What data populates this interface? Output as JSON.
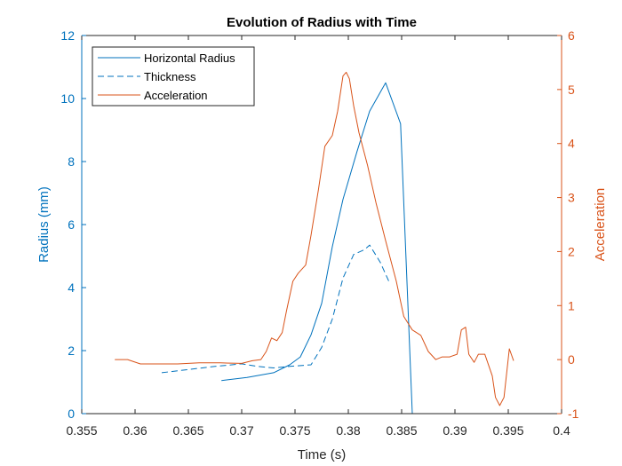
{
  "chart_data": {
    "type": "line",
    "title": "Evolution of Radius with Time",
    "xlabel": "Time (s)",
    "ylabel_left": "Radius (mm)",
    "ylabel_right": "Acceleration",
    "xlim": [
      0.355,
      0.4
    ],
    "ylim_left": [
      0,
      12
    ],
    "ylim_right": [
      -1,
      6
    ],
    "xticks": [
      0.355,
      0.36,
      0.365,
      0.37,
      0.375,
      0.38,
      0.385,
      0.39,
      0.395,
      0.4
    ],
    "xtick_labels": [
      "0.355",
      "0.36",
      "0.365",
      "0.37",
      "0.375",
      "0.38",
      "0.385",
      "0.39",
      "0.395",
      "0.4"
    ],
    "yticks_left": [
      0,
      2,
      4,
      6,
      8,
      10,
      12
    ],
    "ytick_labels_left": [
      "0",
      "2",
      "4",
      "6",
      "8",
      "10",
      "12"
    ],
    "yticks_right": [
      -1,
      0,
      1,
      2,
      3,
      4,
      5,
      6
    ],
    "ytick_labels_right": [
      "-1",
      "0",
      "1",
      "2",
      "3",
      "4",
      "5",
      "6"
    ],
    "grid": false,
    "legend_position": "top-left",
    "colors": {
      "left_axis": "#0072BD",
      "right_axis": "#D95319",
      "frame": "#262626"
    },
    "series": [
      {
        "name": "Horizontal Radius",
        "axis": "left",
        "style": "solid",
        "color": "#0072BD",
        "x": [
          0.3681,
          0.3705,
          0.373,
          0.3745,
          0.3755,
          0.3765,
          0.3775,
          0.3785,
          0.3795,
          0.3808,
          0.382,
          0.383,
          0.3835,
          0.3849,
          0.386
        ],
        "y": [
          1.05,
          1.15,
          1.3,
          1.55,
          1.8,
          2.5,
          3.5,
          5.3,
          6.8,
          8.3,
          9.6,
          10.2,
          10.5,
          9.2,
          0
        ]
      },
      {
        "name": "Thickness",
        "axis": "left",
        "style": "dashed",
        "color": "#0072BD",
        "x": [
          0.3625,
          0.365,
          0.3675,
          0.37,
          0.3715,
          0.373,
          0.3745,
          0.3765,
          0.3775,
          0.3785,
          0.3795,
          0.3805,
          0.3815,
          0.382,
          0.383,
          0.3838
        ],
        "y": [
          1.3,
          1.4,
          1.5,
          1.58,
          1.5,
          1.45,
          1.5,
          1.55,
          2.1,
          3.0,
          4.3,
          5.05,
          5.2,
          5.35,
          4.8,
          4.2
        ]
      },
      {
        "name": "Acceleration",
        "axis": "right",
        "style": "solid",
        "color": "#D95319",
        "x": [
          0.3581,
          0.3593,
          0.3605,
          0.362,
          0.364,
          0.366,
          0.368,
          0.37,
          0.371,
          0.3718,
          0.3723,
          0.3728,
          0.3733,
          0.3738,
          0.3742,
          0.3748,
          0.3753,
          0.376,
          0.3765,
          0.3772,
          0.3778,
          0.3785,
          0.379,
          0.3795,
          0.3798,
          0.3801,
          0.3805,
          0.381,
          0.3818,
          0.3826,
          0.3835,
          0.3845,
          0.3852,
          0.386,
          0.3868,
          0.3875,
          0.3882,
          0.3888,
          0.3895,
          0.3902,
          0.3906,
          0.391,
          0.3913,
          0.3918,
          0.3922,
          0.3928,
          0.3935,
          0.3938,
          0.3942,
          0.3946,
          0.3951,
          0.3955
        ],
        "y": [
          0.0,
          0.0,
          -0.08,
          -0.08,
          -0.08,
          -0.06,
          -0.06,
          -0.07,
          -0.02,
          0.0,
          0.15,
          0.4,
          0.35,
          0.5,
          0.9,
          1.45,
          1.6,
          1.75,
          2.3,
          3.15,
          3.95,
          4.15,
          4.6,
          5.25,
          5.32,
          5.2,
          4.7,
          4.2,
          3.6,
          2.9,
          2.2,
          1.45,
          0.8,
          0.55,
          0.45,
          0.15,
          0.0,
          0.05,
          0.05,
          0.1,
          0.55,
          0.6,
          0.1,
          -0.05,
          0.1,
          0.1,
          -0.3,
          -0.7,
          -0.85,
          -0.7,
          0.2,
          -0.02
        ]
      }
    ]
  }
}
